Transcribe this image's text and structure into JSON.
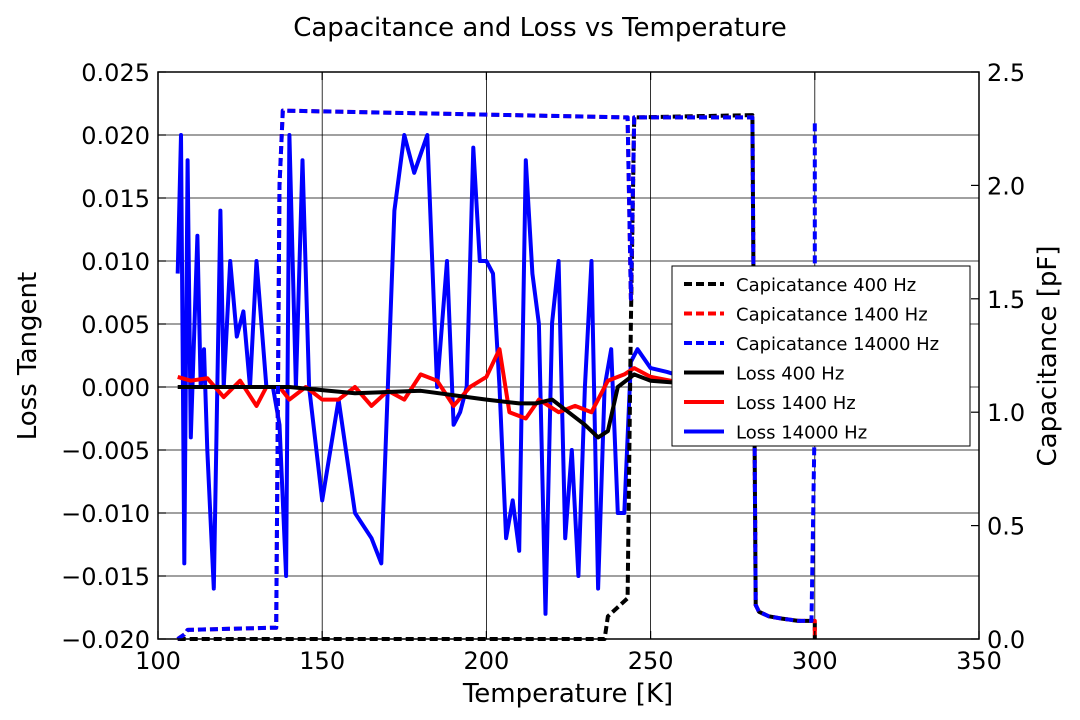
{
  "chart_data": {
    "type": "line",
    "title": "Capacitance and Loss vs Temperature",
    "xlabel": "Temperature [K]",
    "ylabel_left": "Loss Tangent",
    "ylabel_right": "Capacitance [pF]",
    "xlim": [
      100,
      350
    ],
    "ylim_left": [
      -0.02,
      0.025
    ],
    "ylim_right": [
      0.0,
      2.5
    ],
    "x_ticks": [
      100,
      150,
      200,
      250,
      300,
      350
    ],
    "x_tick_labels": [
      "100",
      "150",
      "200",
      "250",
      "300",
      "350"
    ],
    "y_left_ticks": [
      -0.02,
      -0.015,
      -0.01,
      -0.005,
      0.0,
      0.005,
      0.01,
      0.015,
      0.02,
      0.025
    ],
    "y_left_tick_labels": [
      "−0.020",
      "−0.015",
      "−0.010",
      "−0.005",
      "0.000",
      "0.005",
      "0.010",
      "0.015",
      "0.020",
      "0.025"
    ],
    "y_right_ticks": [
      0.0,
      0.5,
      1.0,
      1.5,
      2.0,
      2.5
    ],
    "y_right_tick_labels": [
      "0.0",
      "0.5",
      "1.0",
      "1.5",
      "2.0",
      "2.5"
    ],
    "grid": true,
    "legend_position": "right",
    "series": [
      {
        "name": "Capicatance 400 Hz",
        "axis": "right",
        "color": "#000000",
        "dash": true,
        "x": [
          106,
          108,
          135,
          236,
          237,
          243,
          244,
          245,
          281,
          282,
          283,
          286,
          290,
          295,
          299,
          300,
          300
        ],
        "y": [
          0.0,
          0.0,
          0.0,
          0.0,
          0.1,
          0.18,
          1.4,
          2.3,
          2.31,
          0.15,
          0.12,
          0.1,
          0.09,
          0.08,
          0.08,
          0.08,
          0.0
        ]
      },
      {
        "name": "Capicatance 1400 Hz",
        "axis": "right",
        "color": "#ff0000",
        "dash": true,
        "x": [
          106,
          108,
          109,
          135,
          136,
          137,
          138,
          243,
          244,
          245,
          281,
          282,
          283,
          286,
          290,
          295,
          299,
          300,
          300
        ],
        "y": [
          0.0,
          0.02,
          0.04,
          0.05,
          0.05,
          2.0,
          2.33,
          2.3,
          1.5,
          2.3,
          2.3,
          0.15,
          0.12,
          0.1,
          0.09,
          0.08,
          0.08,
          0.08,
          0.0
        ]
      },
      {
        "name": "Capicatance 14000 Hz",
        "axis": "right",
        "color": "#0000ff",
        "dash": true,
        "x": [
          106,
          108,
          109,
          135,
          136,
          137,
          138,
          243,
          244,
          245,
          281,
          282,
          283,
          286,
          290,
          295,
          299,
          300,
          300
        ],
        "y": [
          0.0,
          0.02,
          0.04,
          0.05,
          0.05,
          2.0,
          2.33,
          2.3,
          1.5,
          2.3,
          2.3,
          0.15,
          0.12,
          0.1,
          0.09,
          0.08,
          0.08,
          1.0,
          2.28
        ]
      },
      {
        "name": "Loss 400 Hz",
        "axis": "left",
        "color": "#000000",
        "dash": false,
        "x": [
          106,
          120,
          140,
          160,
          180,
          200,
          210,
          215,
          220,
          225,
          230,
          234,
          237,
          240,
          245,
          250,
          260,
          270
        ],
        "y": [
          0.0,
          0.0,
          0.0,
          -0.0005,
          -0.0003,
          -0.001,
          -0.0013,
          -0.0013,
          -0.001,
          -0.002,
          -0.003,
          -0.004,
          -0.0035,
          0.0,
          0.001,
          0.0005,
          0.0003,
          0.0002
        ]
      },
      {
        "name": "Loss 1400 Hz",
        "axis": "left",
        "color": "#ff0000",
        "dash": false,
        "x": [
          106,
          110,
          115,
          120,
          125,
          130,
          133,
          137,
          140,
          145,
          150,
          155,
          160,
          165,
          170,
          175,
          180,
          185,
          190,
          195,
          200,
          204,
          207,
          212,
          216,
          222,
          227,
          232,
          237,
          242,
          245,
          250,
          260,
          270
        ],
        "y": [
          0.0008,
          0.0005,
          0.0007,
          -0.0008,
          0.0005,
          -0.0015,
          0.0,
          0.0,
          -0.001,
          0.0,
          -0.001,
          -0.001,
          0.0,
          -0.0015,
          -0.0003,
          -0.001,
          0.001,
          0.0005,
          -0.0015,
          0.0,
          0.0008,
          0.003,
          -0.002,
          -0.0025,
          -0.001,
          -0.002,
          -0.0015,
          -0.002,
          0.0005,
          0.001,
          0.0015,
          0.0008,
          0.0003,
          0.0001
        ]
      },
      {
        "name": "Loss 14000 Hz",
        "axis": "left",
        "color": "#0000ff",
        "dash": false,
        "x": [
          106,
          107,
          108,
          109,
          110,
          112,
          113,
          114,
          115,
          117,
          119,
          120,
          122,
          124,
          126,
          128,
          130,
          133,
          135,
          137,
          139,
          140,
          142,
          144,
          146,
          150,
          155,
          160,
          165,
          168,
          172,
          175,
          178,
          182,
          185,
          188,
          190,
          192,
          194,
          196,
          198,
          200,
          202,
          204,
          206,
          208,
          210,
          212,
          214,
          216,
          218,
          220,
          222,
          224,
          226,
          228,
          230,
          232,
          234,
          236,
          238,
          240,
          242,
          244,
          246,
          250,
          255,
          260
        ],
        "y": [
          0.009,
          0.02,
          -0.014,
          0.018,
          -0.004,
          0.012,
          0.0,
          0.003,
          -0.005,
          -0.016,
          0.014,
          0.0,
          0.01,
          0.004,
          0.006,
          0.0,
          0.01,
          0.0,
          0.0,
          -0.003,
          -0.015,
          0.02,
          0.0,
          0.018,
          0.0,
          -0.009,
          -0.001,
          -0.01,
          -0.012,
          -0.014,
          0.014,
          0.02,
          0.017,
          0.02,
          0.0,
          0.01,
          -0.003,
          -0.002,
          0.0,
          0.019,
          0.01,
          0.01,
          0.009,
          0.0,
          -0.012,
          -0.009,
          -0.013,
          0.018,
          0.009,
          0.005,
          -0.018,
          0.0051,
          0.01,
          -0.012,
          -0.005,
          -0.015,
          0.0,
          0.01,
          -0.016,
          0.0,
          0.003,
          -0.01,
          -0.01,
          0.002,
          0.003,
          0.0015,
          0.0012,
          0.0008
        ]
      }
    ]
  }
}
